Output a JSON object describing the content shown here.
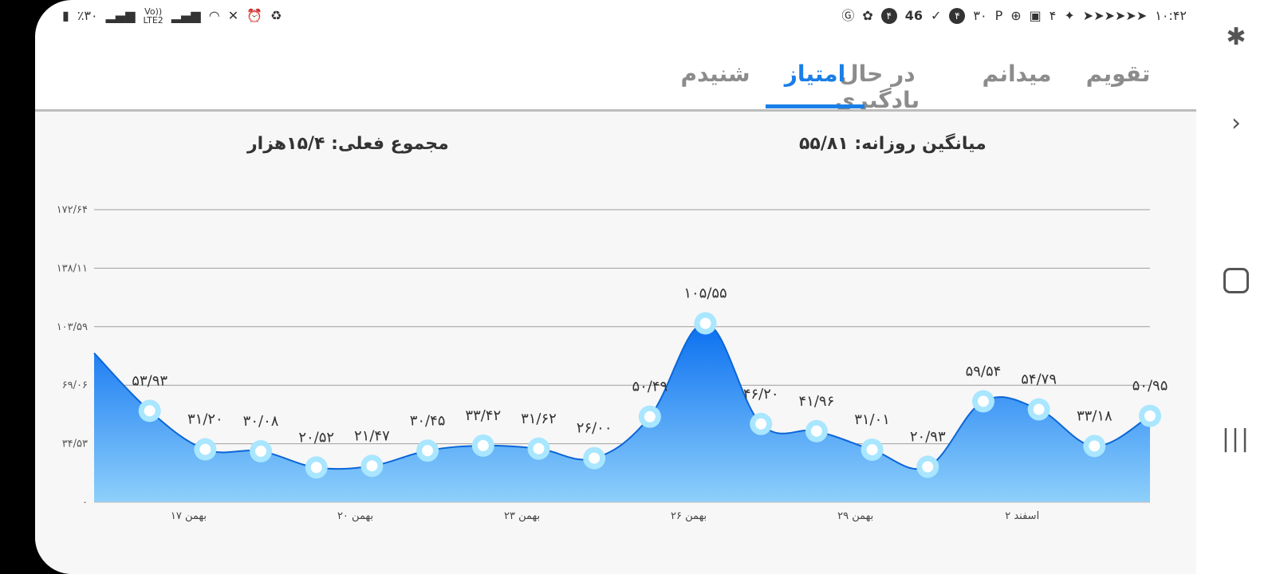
{
  "status_bar": {
    "left": {
      "battery": "٪۳۰",
      "network": "LTE2",
      "volte": "Vo))"
    },
    "right": {
      "clock": "۱۰:۴۲",
      "count_46": "46",
      "badge_4a": "۴",
      "badge_4b": "۴",
      "num_30": "۳۰",
      "num_4": "۴"
    }
  },
  "tabs": [
    {
      "label": "تقویم",
      "active": false
    },
    {
      "label": "میدانم",
      "active": false
    },
    {
      "label": "در حال یادگیری",
      "active": false
    },
    {
      "label": "امتیاز",
      "active": true
    },
    {
      "label": "شنیدم",
      "active": false
    }
  ],
  "summary": {
    "daily_average": "میانگین روزانه: ۵۵/۸۱",
    "current_total": "مجموع فعلی: ۱۵/۴هزار"
  },
  "colors": {
    "accent": "#1a7fe6",
    "area_top": "#0a6ff0",
    "area_bottom": "#8ed0fb",
    "point": "#a9e6ff"
  },
  "chart_data": {
    "type": "area",
    "y_ticks": [
      {
        "value": 0,
        "label": "۰"
      },
      {
        "value": 34.53,
        "label": "۳۴/۵۳"
      },
      {
        "value": 69.06,
        "label": "۶۹/۰۶"
      },
      {
        "value": 103.59,
        "label": "۱۰۳/۵۹"
      },
      {
        "value": 138.11,
        "label": "۱۳۸/۱۱"
      },
      {
        "value": 172.64,
        "label": "۱۷۲/۶۴"
      }
    ],
    "ylim": [
      0,
      172.64
    ],
    "x_ticks": [
      {
        "index": 1.7,
        "label": "۱۷ بهمن"
      },
      {
        "index": 4.7,
        "label": "۲۰ بهمن"
      },
      {
        "index": 7.7,
        "label": "۲۳ بهمن"
      },
      {
        "index": 10.7,
        "label": "۲۶ بهمن"
      },
      {
        "index": 13.7,
        "label": "۲۹ بهمن"
      },
      {
        "index": 16.7,
        "label": "۲ اسفند"
      }
    ],
    "points": [
      {
        "value": 88.0,
        "label": ""
      },
      {
        "value": 53.93,
        "label": "۵۳/۹۳"
      },
      {
        "value": 31.2,
        "label": "۳۱/۲۰"
      },
      {
        "value": 30.08,
        "label": "۳۰/۰۸"
      },
      {
        "value": 20.52,
        "label": "۲۰/۵۲"
      },
      {
        "value": 21.47,
        "label": "۲۱/۴۷"
      },
      {
        "value": 30.45,
        "label": "۳۰/۴۵"
      },
      {
        "value": 33.42,
        "label": "۳۳/۴۲"
      },
      {
        "value": 31.62,
        "label": "۳۱/۶۲"
      },
      {
        "value": 26.0,
        "label": "۲۶/۰۰"
      },
      {
        "value": 50.49,
        "label": "۵۰/۴۹"
      },
      {
        "value": 105.55,
        "label": "۱۰۵/۵۵"
      },
      {
        "value": 46.2,
        "label": "۴۶/۲۰"
      },
      {
        "value": 41.96,
        "label": "۴۱/۹۶"
      },
      {
        "value": 31.01,
        "label": "۳۱/۰۱"
      },
      {
        "value": 20.93,
        "label": "۲۰/۹۳"
      },
      {
        "value": 59.54,
        "label": "۵۹/۵۴"
      },
      {
        "value": 54.79,
        "label": "۵۴/۷۹"
      },
      {
        "value": 33.18,
        "label": "۳۳/۱۸"
      },
      {
        "value": 50.95,
        "label": "۵۰/۹۵"
      }
    ],
    "grid": true
  }
}
